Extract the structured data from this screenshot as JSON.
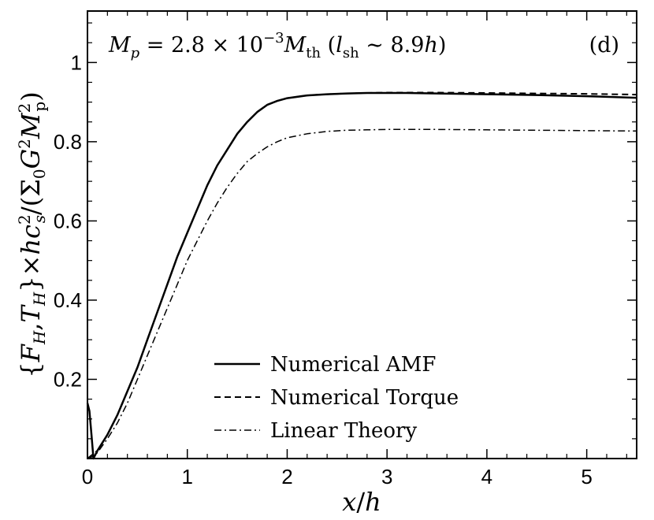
{
  "chart_data": {
    "type": "line",
    "title": "",
    "annotation": "M_p = 2.8 × 10^-3 M_th (l_sh ~ 8.9h)",
    "panel_label": "(d)",
    "xlabel": "x/h",
    "ylabel": "{F_H,T_H} × hc_s^2/(Σ_0 G^2 M_p^2)",
    "xlim": [
      0,
      5.5
    ],
    "ylim": [
      0,
      1.13
    ],
    "xticks": [
      0,
      1,
      2,
      3,
      4,
      5
    ],
    "xtick_labels": [
      "0",
      "1",
      "2",
      "3",
      "4",
      "5"
    ],
    "yticks": [
      0.2,
      0.4,
      0.6,
      0.8,
      1.0
    ],
    "ytick_labels": [
      "0.2",
      "0.4",
      "0.6",
      "0.8",
      "1"
    ],
    "grid": false,
    "legend_position": "lower-right",
    "series": [
      {
        "name": "Numerical AMF",
        "style": "solid",
        "x": [
          0,
          0.02,
          0.04,
          0.06,
          0.08,
          0.1,
          0.2,
          0.3,
          0.4,
          0.5,
          0.6,
          0.7,
          0.8,
          0.9,
          1.0,
          1.1,
          1.2,
          1.3,
          1.4,
          1.5,
          1.6,
          1.7,
          1.8,
          1.9,
          2.0,
          2.2,
          2.4,
          2.6,
          2.8,
          3.0,
          3.2,
          3.5,
          4.0,
          4.5,
          5.0,
          5.5
        ],
        "y": [
          0.14,
          0.12,
          0.06,
          0.0,
          0.01,
          0.02,
          0.06,
          0.11,
          0.17,
          0.23,
          0.3,
          0.37,
          0.44,
          0.51,
          0.57,
          0.63,
          0.69,
          0.74,
          0.78,
          0.82,
          0.85,
          0.875,
          0.893,
          0.903,
          0.91,
          0.917,
          0.92,
          0.922,
          0.923,
          0.923,
          0.923,
          0.922,
          0.92,
          0.918,
          0.915,
          0.911
        ]
      },
      {
        "name": "Numerical Torque",
        "style": "dashed",
        "x": [
          0,
          0.05,
          0.1,
          0.2,
          0.3,
          0.4,
          0.5,
          0.6,
          0.7,
          0.8,
          0.9,
          1.0,
          1.1,
          1.2,
          1.3,
          1.4,
          1.5,
          1.6,
          1.7,
          1.8,
          1.9,
          2.0,
          2.2,
          2.4,
          2.6,
          2.8,
          3.0,
          3.2,
          3.5,
          4.0,
          4.5,
          5.0,
          5.5
        ],
        "y": [
          0.0,
          0.01,
          0.02,
          0.06,
          0.11,
          0.17,
          0.23,
          0.3,
          0.37,
          0.44,
          0.51,
          0.57,
          0.63,
          0.69,
          0.74,
          0.78,
          0.82,
          0.85,
          0.875,
          0.893,
          0.903,
          0.91,
          0.917,
          0.92,
          0.922,
          0.923,
          0.924,
          0.924,
          0.924,
          0.923,
          0.922,
          0.921,
          0.919
        ]
      },
      {
        "name": "Linear Theory",
        "style": "dashdot",
        "x": [
          0,
          0.05,
          0.1,
          0.2,
          0.3,
          0.4,
          0.5,
          0.6,
          0.7,
          0.8,
          0.9,
          1.0,
          1.1,
          1.2,
          1.3,
          1.4,
          1.5,
          1.6,
          1.7,
          1.8,
          1.9,
          2.0,
          2.2,
          2.4,
          2.6,
          2.8,
          3.0,
          3.2,
          3.5,
          4.0,
          4.5,
          5.0,
          5.5
        ],
        "y": [
          0.0,
          0.005,
          0.015,
          0.05,
          0.09,
          0.14,
          0.2,
          0.26,
          0.32,
          0.38,
          0.44,
          0.5,
          0.55,
          0.6,
          0.645,
          0.685,
          0.72,
          0.75,
          0.77,
          0.787,
          0.8,
          0.81,
          0.82,
          0.826,
          0.829,
          0.83,
          0.831,
          0.831,
          0.831,
          0.83,
          0.829,
          0.828,
          0.827
        ]
      }
    ]
  }
}
